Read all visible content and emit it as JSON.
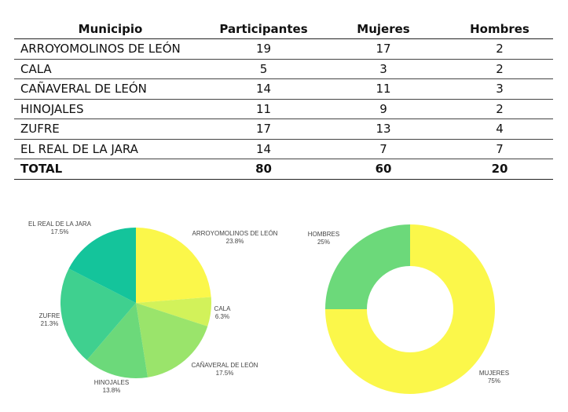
{
  "table": {
    "headers": [
      "Municipio",
      "Participantes",
      "Mujeres",
      "Hombres"
    ],
    "rows": [
      [
        "ARROYOMOLINOS DE LEÓN",
        "19",
        "17",
        "2"
      ],
      [
        "CALA",
        "5",
        "3",
        "2"
      ],
      [
        "CAÑAVERAL DE LEÓN",
        "14",
        "11",
        "3"
      ],
      [
        "HINOJALES",
        "11",
        "9",
        "2"
      ],
      [
        "ZUFRE",
        "17",
        "13",
        "4"
      ],
      [
        "EL REAL DE LA JARA",
        "14",
        "7",
        "7"
      ]
    ],
    "total": [
      "TOTAL",
      "80",
      "60",
      "20"
    ]
  },
  "chart_data": [
    {
      "type": "pie",
      "labels": [
        "ARROYOMOLINOS DE LEÓN",
        "CALA",
        "CAÑAVERAL DE LEÓN",
        "HINOJALES",
        "ZUFRE",
        "EL REAL DE LA JARA"
      ],
      "values": [
        23.8,
        6.3,
        17.5,
        13.8,
        21.3,
        17.5
      ],
      "value_labels": [
        "23.8%",
        "6.3%",
        "17.5%",
        "13.8%",
        "21.3%",
        "17.5%"
      ],
      "colors": [
        "#fbf74a",
        "#d2f25a",
        "#9ae46b",
        "#6cd97a",
        "#3fd08f",
        "#14c49b"
      ]
    },
    {
      "type": "pie",
      "subtype": "donut",
      "labels": [
        "MUJERES",
        "HOMBRES"
      ],
      "values": [
        75,
        25
      ],
      "value_labels": [
        "75%",
        "25%"
      ],
      "colors": [
        "#fbf74a",
        "#6cd97a"
      ]
    }
  ]
}
